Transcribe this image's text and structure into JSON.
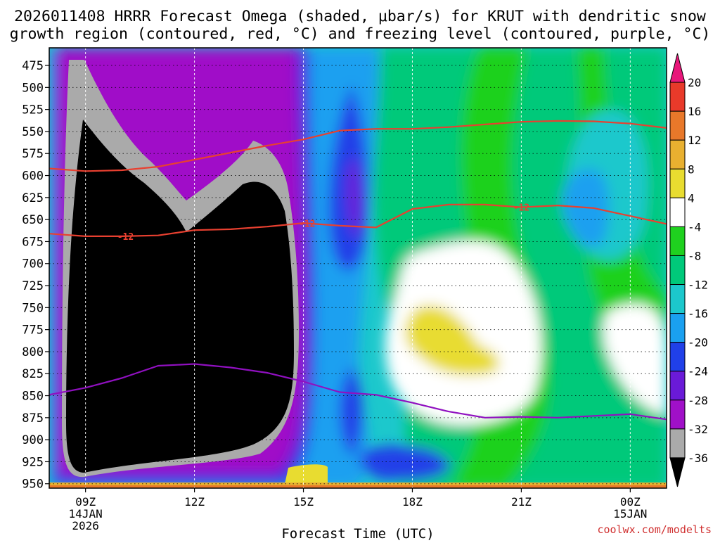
{
  "chart_data": {
    "type": "heatmap",
    "title_line1": "2026011408 HRRR Forecast Omega (shaded, μbar/s) for KRUT with dendritic snow",
    "title_line2": "growth region (contoured, red, °C) and freezing level (contoured, purple, °C)",
    "xlabel": "Forecast Time (UTC)",
    "watermark": "coolwx.com/modelts",
    "xlim": [
      8,
      25
    ],
    "ylim": [
      955,
      455
    ],
    "grid": true,
    "y_ticks": [
      475,
      500,
      525,
      550,
      575,
      600,
      625,
      650,
      675,
      700,
      725,
      750,
      775,
      800,
      825,
      850,
      875,
      900,
      925,
      950
    ],
    "y_tick_labels": [
      "475",
      "500",
      "525",
      "550",
      "575",
      "600",
      "625",
      "650",
      "675",
      "700",
      "725",
      "750",
      "775",
      "800",
      "825",
      "850",
      "875",
      "900",
      "925",
      "950"
    ],
    "x_ticks": [
      {
        "hour": 9,
        "label": "09Z",
        "line2": "14JAN",
        "line3": "2026"
      },
      {
        "hour": 12,
        "label": "12Z",
        "line2": "",
        "line3": ""
      },
      {
        "hour": 15,
        "label": "15Z",
        "line2": "",
        "line3": ""
      },
      {
        "hour": 18,
        "label": "18Z",
        "line2": "",
        "line3": ""
      },
      {
        "hour": 21,
        "label": "21Z",
        "line2": "",
        "line3": ""
      },
      {
        "hour": 24,
        "label": "00Z",
        "line2": "15JAN",
        "line3": ""
      }
    ],
    "colorbar": {
      "labels": [
        "20",
        "16",
        "12",
        "8",
        "4",
        "-4",
        "-8",
        "-12",
        "-16",
        "-20",
        "-24",
        "-28",
        "-32",
        "-36"
      ],
      "bins": [
        {
          "from": 20,
          "to": 24,
          "color": "#e8177a"
        },
        {
          "from": 16,
          "to": 20,
          "color": "#e83a2a"
        },
        {
          "from": 12,
          "to": 16,
          "color": "#e8782a"
        },
        {
          "from": 8,
          "to": 12,
          "color": "#e8b030"
        },
        {
          "from": 4,
          "to": 8,
          "color": "#e8dc30"
        },
        {
          "from": -4,
          "to": 4,
          "color": "#ffffff"
        },
        {
          "from": -8,
          "to": -4,
          "color": "#1fd11f"
        },
        {
          "from": -12,
          "to": -8,
          "color": "#00c97a"
        },
        {
          "from": -16,
          "to": -12,
          "color": "#1cc8cc"
        },
        {
          "from": -20,
          "to": -16,
          "color": "#1aa0f0"
        },
        {
          "from": -24,
          "to": -20,
          "color": "#2040e8"
        },
        {
          "from": -28,
          "to": -24,
          "color": "#6a1ad8"
        },
        {
          "from": -32,
          "to": -28,
          "color": "#a010c8"
        },
        {
          "from": -36,
          "to": -32,
          "color": "#aaaaaa"
        },
        {
          "from": -40,
          "to": -36,
          "color": "#000000"
        }
      ]
    },
    "series": [
      {
        "name": "",
        "contour": "-12",
        "color": "#e84030",
        "points": [
          [
            8,
            592
          ],
          [
            9,
            595
          ],
          [
            10,
            594
          ],
          [
            11,
            590
          ],
          [
            12,
            582
          ],
          [
            13,
            574
          ],
          [
            14,
            566
          ],
          [
            15,
            559
          ],
          [
            16,
            549
          ],
          [
            17,
            547
          ],
          [
            18,
            547
          ],
          [
            19,
            545
          ],
          [
            20,
            542
          ],
          [
            21,
            539
          ],
          [
            22,
            538
          ],
          [
            23,
            538.5
          ],
          [
            24,
            541
          ],
          [
            25,
            546
          ]
        ],
        "label": "",
        "label_hours": []
      },
      {
        "name": "",
        "contour": "-12",
        "color": "#e84030",
        "points": [
          [
            8,
            666
          ],
          [
            9,
            669
          ],
          [
            10,
            669
          ],
          [
            11,
            668
          ],
          [
            12,
            662
          ],
          [
            13,
            661
          ],
          [
            14,
            658
          ],
          [
            15,
            654
          ],
          [
            16,
            657
          ],
          [
            17,
            659
          ],
          [
            18,
            638
          ],
          [
            19,
            633
          ],
          [
            20,
            633
          ],
          [
            21,
            636
          ],
          [
            22,
            634
          ],
          [
            23,
            637
          ],
          [
            24,
            646
          ],
          [
            25,
            655
          ]
        ],
        "label": "-12",
        "label_hours": [
          10.1,
          15.1,
          21.0
        ]
      },
      {
        "name": "",
        "contour": "0",
        "color": "#9010c0",
        "points": [
          [
            8,
            849
          ],
          [
            9,
            841
          ],
          [
            10,
            830
          ],
          [
            11,
            816
          ],
          [
            12,
            814
          ],
          [
            13,
            818
          ],
          [
            14,
            824
          ],
          [
            15,
            834
          ],
          [
            16,
            846
          ],
          [
            17,
            849
          ],
          [
            18,
            858
          ],
          [
            19,
            868
          ],
          [
            20,
            875
          ],
          [
            21,
            874
          ],
          [
            22,
            875
          ],
          [
            23,
            873
          ],
          [
            24,
            871
          ],
          [
            25,
            877
          ]
        ],
        "label": "",
        "label_hours": []
      }
    ]
  }
}
